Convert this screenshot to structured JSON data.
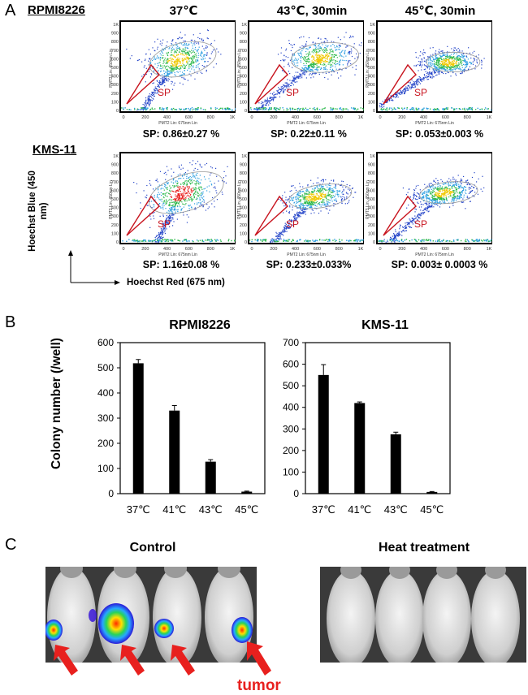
{
  "figure": {
    "panel_a": {
      "letter": "A",
      "cell_lines": [
        "RPMI8226",
        "KMS-11"
      ],
      "conditions": [
        "37℃",
        "43℃, 30min",
        "45℃, 30min"
      ],
      "sp_gate_label": "SP",
      "plot_axis_x": "PMT2 Lin: 675nm Lin",
      "plot_axis_y": "PMT3 Lin: 450nm Lin",
      "plot_ticks_x": [
        "0",
        "200",
        "400",
        "600",
        "800",
        "1K"
      ],
      "plot_ticks_y": [
        "0",
        "100",
        "200",
        "300",
        "400",
        "500",
        "600",
        "700",
        "800",
        "900",
        "1K"
      ],
      "sp_values": [
        [
          "SP: 0.86±0.27 %",
          "SP: 0.22±0.11 %",
          "SP: 0.053±0.003 %"
        ],
        [
          "SP: 1.16±0.08 %",
          "SP: 0.233±0.033%",
          "SP: 0.003± 0.0003 %"
        ]
      ],
      "y_axis_label": "Hoechst Blue (450 nm)",
      "x_axis_label": "Hoechst Red (675 nm)"
    },
    "panel_b": {
      "letter": "B"
    },
    "panel_c": {
      "letter": "C",
      "groups": [
        "Control",
        "Heat treatment"
      ],
      "tumor_label": "tumor",
      "colors": {
        "arrow": "#e8201e",
        "photo_bg": "#3a3a3a"
      }
    }
  },
  "chart_data": [
    {
      "type": "bar",
      "title": "RPMI8226",
      "ylabel": "Colony number (/well)",
      "xlabel": "",
      "categories": [
        "37℃",
        "41℃",
        "43℃",
        "45℃"
      ],
      "values": [
        518,
        330,
        127,
        8
      ],
      "errors": [
        15,
        20,
        8,
        2
      ],
      "ylim": [
        0,
        600
      ],
      "yticks": [
        0,
        100,
        200,
        300,
        400,
        500,
        600
      ]
    },
    {
      "type": "bar",
      "title": "KMS-11",
      "ylabel": "",
      "xlabel": "",
      "categories": [
        "37℃",
        "41℃",
        "43℃",
        "45℃"
      ],
      "values": [
        550,
        420,
        275,
        8
      ],
      "errors": [
        48,
        5,
        10,
        2
      ],
      "ylim": [
        0,
        700
      ],
      "yticks": [
        0,
        100,
        200,
        300,
        400,
        500,
        600,
        700
      ]
    }
  ]
}
